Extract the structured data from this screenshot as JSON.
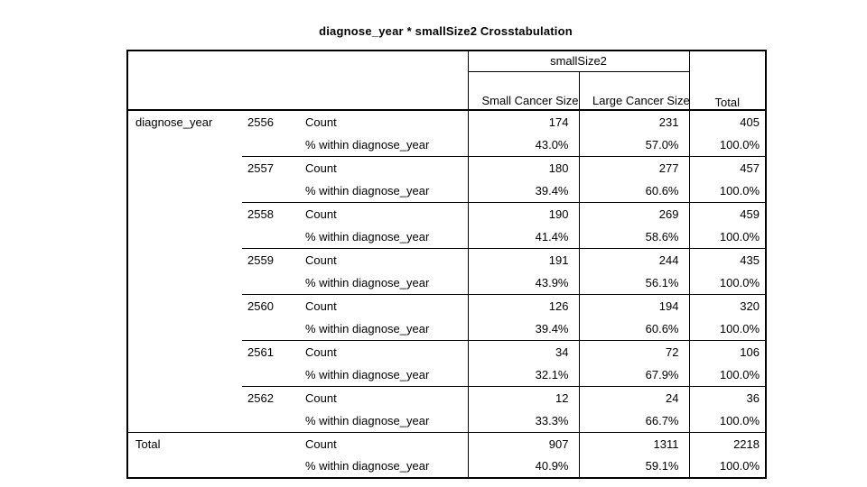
{
  "title": "diagnose_year * smallSize2 Crosstabulation",
  "table": {
    "col_group_header": "smallSize2",
    "col_headers": [
      "Small Cancer Size",
      "Large Cancer Size"
    ],
    "total_col_header": "Total",
    "row_var": "diagnose_year",
    "count_label": "Count",
    "pct_label": "% within diagnose_year",
    "total_row_label": "Total",
    "rows": [
      {
        "year": "2556",
        "count": [
          "174",
          "231",
          "405"
        ],
        "pct": [
          "43.0%",
          "57.0%",
          "100.0%"
        ]
      },
      {
        "year": "2557",
        "count": [
          "180",
          "277",
          "457"
        ],
        "pct": [
          "39.4%",
          "60.6%",
          "100.0%"
        ]
      },
      {
        "year": "2558",
        "count": [
          "190",
          "269",
          "459"
        ],
        "pct": [
          "41.4%",
          "58.6%",
          "100.0%"
        ]
      },
      {
        "year": "2559",
        "count": [
          "191",
          "244",
          "435"
        ],
        "pct": [
          "43.9%",
          "56.1%",
          "100.0%"
        ]
      },
      {
        "year": "2560",
        "count": [
          "126",
          "194",
          "320"
        ],
        "pct": [
          "39.4%",
          "60.6%",
          "100.0%"
        ]
      },
      {
        "year": "2561",
        "count": [
          "34",
          "72",
          "106"
        ],
        "pct": [
          "32.1%",
          "67.9%",
          "100.0%"
        ]
      },
      {
        "year": "2562",
        "count": [
          "12",
          "24",
          "36"
        ],
        "pct": [
          "33.3%",
          "66.7%",
          "100.0%"
        ]
      }
    ],
    "total": {
      "count": [
        "907",
        "1311",
        "2218"
      ],
      "pct": [
        "40.9%",
        "59.1%",
        "100.0%"
      ]
    }
  },
  "colors": {
    "text": "#000000",
    "background": "#ffffff",
    "border": "#000000"
  },
  "chart_data": {
    "type": "table",
    "title": "diagnose_year * smallSize2 Crosstabulation",
    "row_variable": "diagnose_year",
    "column_variable": "smallSize2",
    "columns": [
      "Small Cancer Size",
      "Large Cancer Size",
      "Total"
    ],
    "rows": [
      {
        "year": "2556",
        "count": [
          174,
          231,
          405
        ],
        "pct_within_diagnose_year": [
          43.0,
          57.0,
          100.0
        ]
      },
      {
        "year": "2557",
        "count": [
          180,
          277,
          457
        ],
        "pct_within_diagnose_year": [
          39.4,
          60.6,
          100.0
        ]
      },
      {
        "year": "2558",
        "count": [
          190,
          269,
          459
        ],
        "pct_within_diagnose_year": [
          41.4,
          58.6,
          100.0
        ]
      },
      {
        "year": "2559",
        "count": [
          191,
          244,
          435
        ],
        "pct_within_diagnose_year": [
          43.9,
          56.1,
          100.0
        ]
      },
      {
        "year": "2560",
        "count": [
          126,
          194,
          320
        ],
        "pct_within_diagnose_year": [
          39.4,
          60.6,
          100.0
        ]
      },
      {
        "year": "2561",
        "count": [
          34,
          72,
          106
        ],
        "pct_within_diagnose_year": [
          32.1,
          67.9,
          100.0
        ]
      },
      {
        "year": "2562",
        "count": [
          12,
          24,
          36
        ],
        "pct_within_diagnose_year": [
          33.3,
          66.7,
          100.0
        ]
      }
    ],
    "total": {
      "count": [
        907,
        1311,
        2218
      ],
      "pct_within_diagnose_year": [
        40.9,
        59.1,
        100.0
      ]
    }
  }
}
